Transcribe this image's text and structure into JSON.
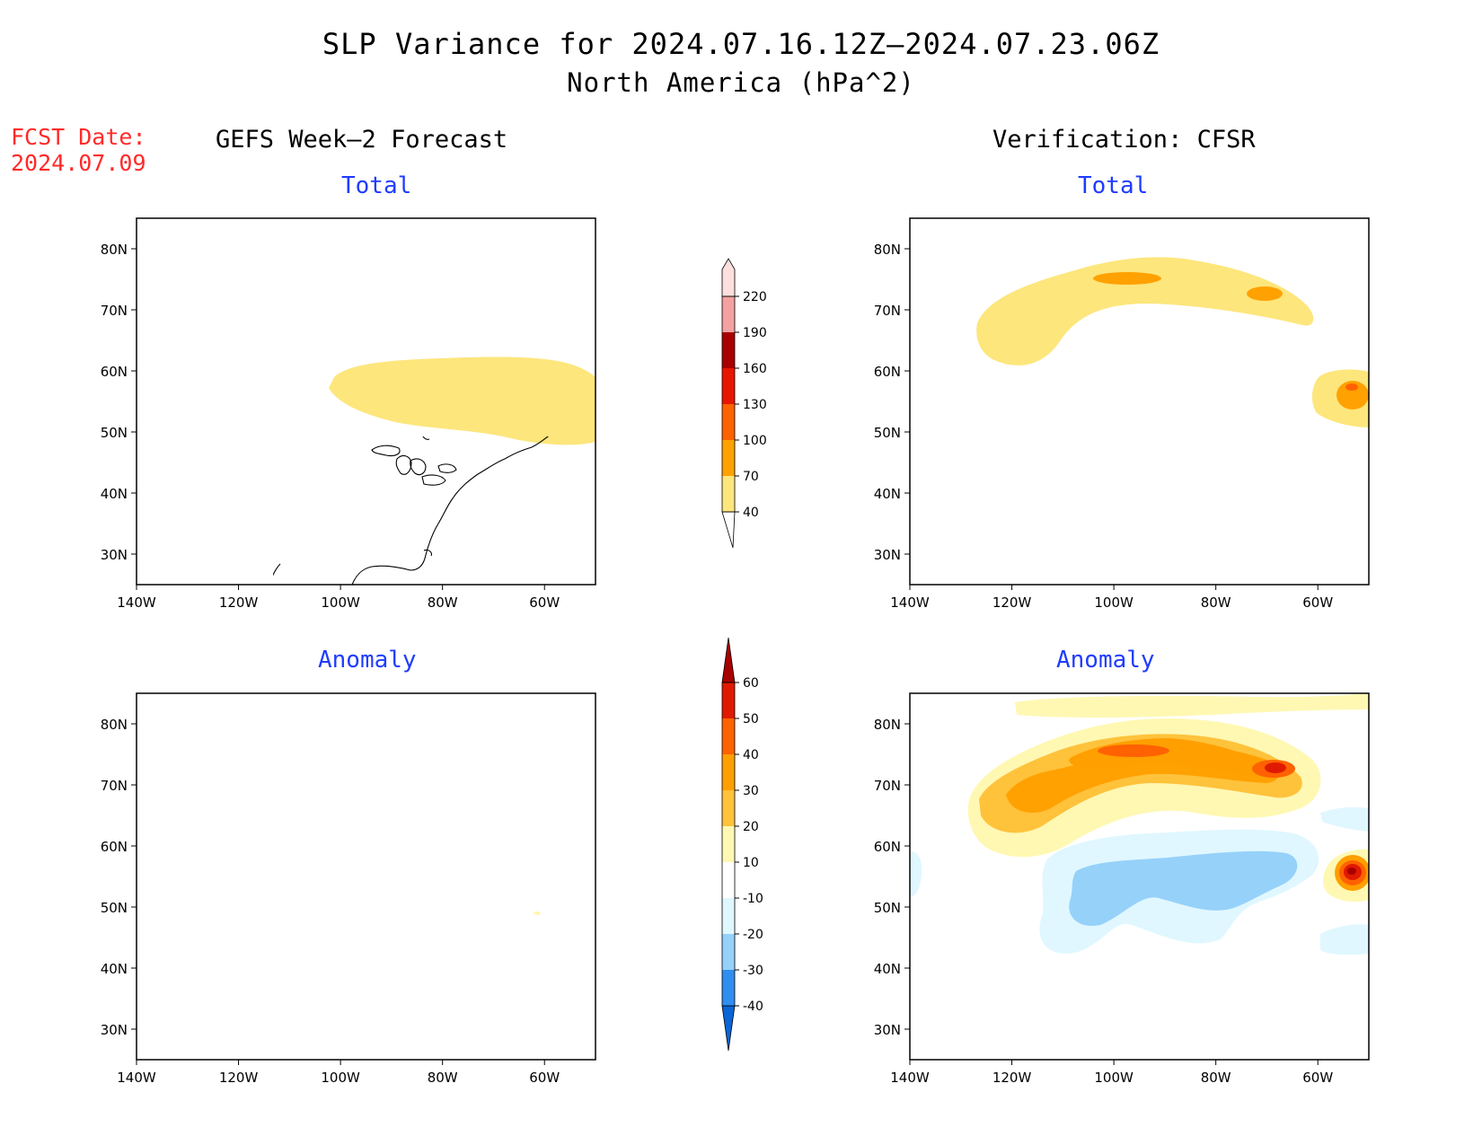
{
  "titles": {
    "main": "SLP Variance for 2024.07.16.12Z–2024.07.23.06Z",
    "sub": "North America (hPa^2)"
  },
  "fcst": {
    "label": "FCST Date:",
    "date": "2024.07.09"
  },
  "columns": {
    "left": "GEFS Week–2 Forecast",
    "right": "Verification: CFSR"
  },
  "panel_titles": {
    "total_left": "Total",
    "total_right": "Total",
    "anom_left": "Anomaly",
    "anom_right": "Anomaly"
  },
  "chart_data": [
    {
      "type": "heatmap",
      "panel": "GEFS Week-2 Forecast — Total",
      "x_ticks": [
        "140W",
        "120W",
        "100W",
        "80W",
        "60W"
      ],
      "y_ticks": [
        "30N",
        "40N",
        "50N",
        "60N",
        "70N",
        "80N"
      ],
      "xlim": [
        -140,
        -50
      ],
      "ylim": [
        25,
        85
      ],
      "regions": [
        {
          "level": "40-70",
          "area": "Hudson Bay / Quebec / Labrador, ~48N-63N, 100W-50W"
        }
      ]
    },
    {
      "type": "heatmap",
      "panel": "Verification: CFSR — Total",
      "x_ticks": [
        "140W",
        "120W",
        "100W",
        "80W",
        "60W"
      ],
      "y_ticks": [
        "30N",
        "40N",
        "50N",
        "60N",
        "70N",
        "80N"
      ],
      "xlim": [
        -140,
        -50
      ],
      "ylim": [
        25,
        85
      ],
      "regions": [
        {
          "level": "40-70",
          "area": "Canadian Arctic / Alaska-Yukon, ~62N-79N, 130W-60W"
        },
        {
          "level": "70-100",
          "area": "near 75N 100W and 72N 72W"
        },
        {
          "level": "70-100",
          "area": "Labrador Sea, ~52N-60N, 58W-50W"
        }
      ]
    },
    {
      "type": "heatmap",
      "panel": "GEFS Week-2 Forecast — Anomaly",
      "x_ticks": [
        "140W",
        "120W",
        "100W",
        "80W",
        "60W"
      ],
      "y_ticks": [
        "30N",
        "40N",
        "50N",
        "60N",
        "70N",
        "80N"
      ],
      "xlim": [
        -140,
        -50
      ],
      "ylim": [
        25,
        85
      ],
      "regions": [
        {
          "level": "10-20",
          "area": "tiny spot near 51N 66W"
        }
      ]
    },
    {
      "type": "heatmap",
      "panel": "Verification: CFSR — Anomaly",
      "x_ticks": [
        "140W",
        "120W",
        "100W",
        "80W",
        "60W"
      ],
      "y_ticks": [
        "30N",
        "40N",
        "50N",
        "60N",
        "70N",
        "80N"
      ],
      "xlim": [
        -140,
        -50
      ],
      "ylim": [
        25,
        85
      ],
      "regions": [
        {
          "level": "10-50+",
          "area": "positive band across Canadian Arctic, max >50 near 75N 100W and 72N 72W"
        },
        {
          "level": "50-60",
          "area": "Labrador Sea near 57N 53W"
        },
        {
          "level": "-10 to -20",
          "area": "Hudson Bay to Prairies, ~48N-60N, 110W-65W"
        }
      ]
    }
  ],
  "colorbars": {
    "total": {
      "colors": [
        "#fde67c",
        "#ffa100",
        "#ff6200",
        "#e81600",
        "#a80000",
        "#f4a1a1",
        "#fde0de"
      ],
      "labels": [
        "40",
        "70",
        "100",
        "130",
        "160",
        "190",
        "220"
      ]
    },
    "anomaly": {
      "colors": [
        "#0a65d6",
        "#2f8ef0",
        "#96d1fa",
        "#e0f7ff",
        "#ffffff",
        "#fff8b3",
        "#ffc23b",
        "#ff9f00",
        "#ff6200",
        "#e01a00",
        "#a80000"
      ],
      "labels": [
        "-40",
        "-30",
        "-20",
        "-10",
        "10",
        "20",
        "30",
        "40",
        "50",
        "60"
      ]
    }
  }
}
